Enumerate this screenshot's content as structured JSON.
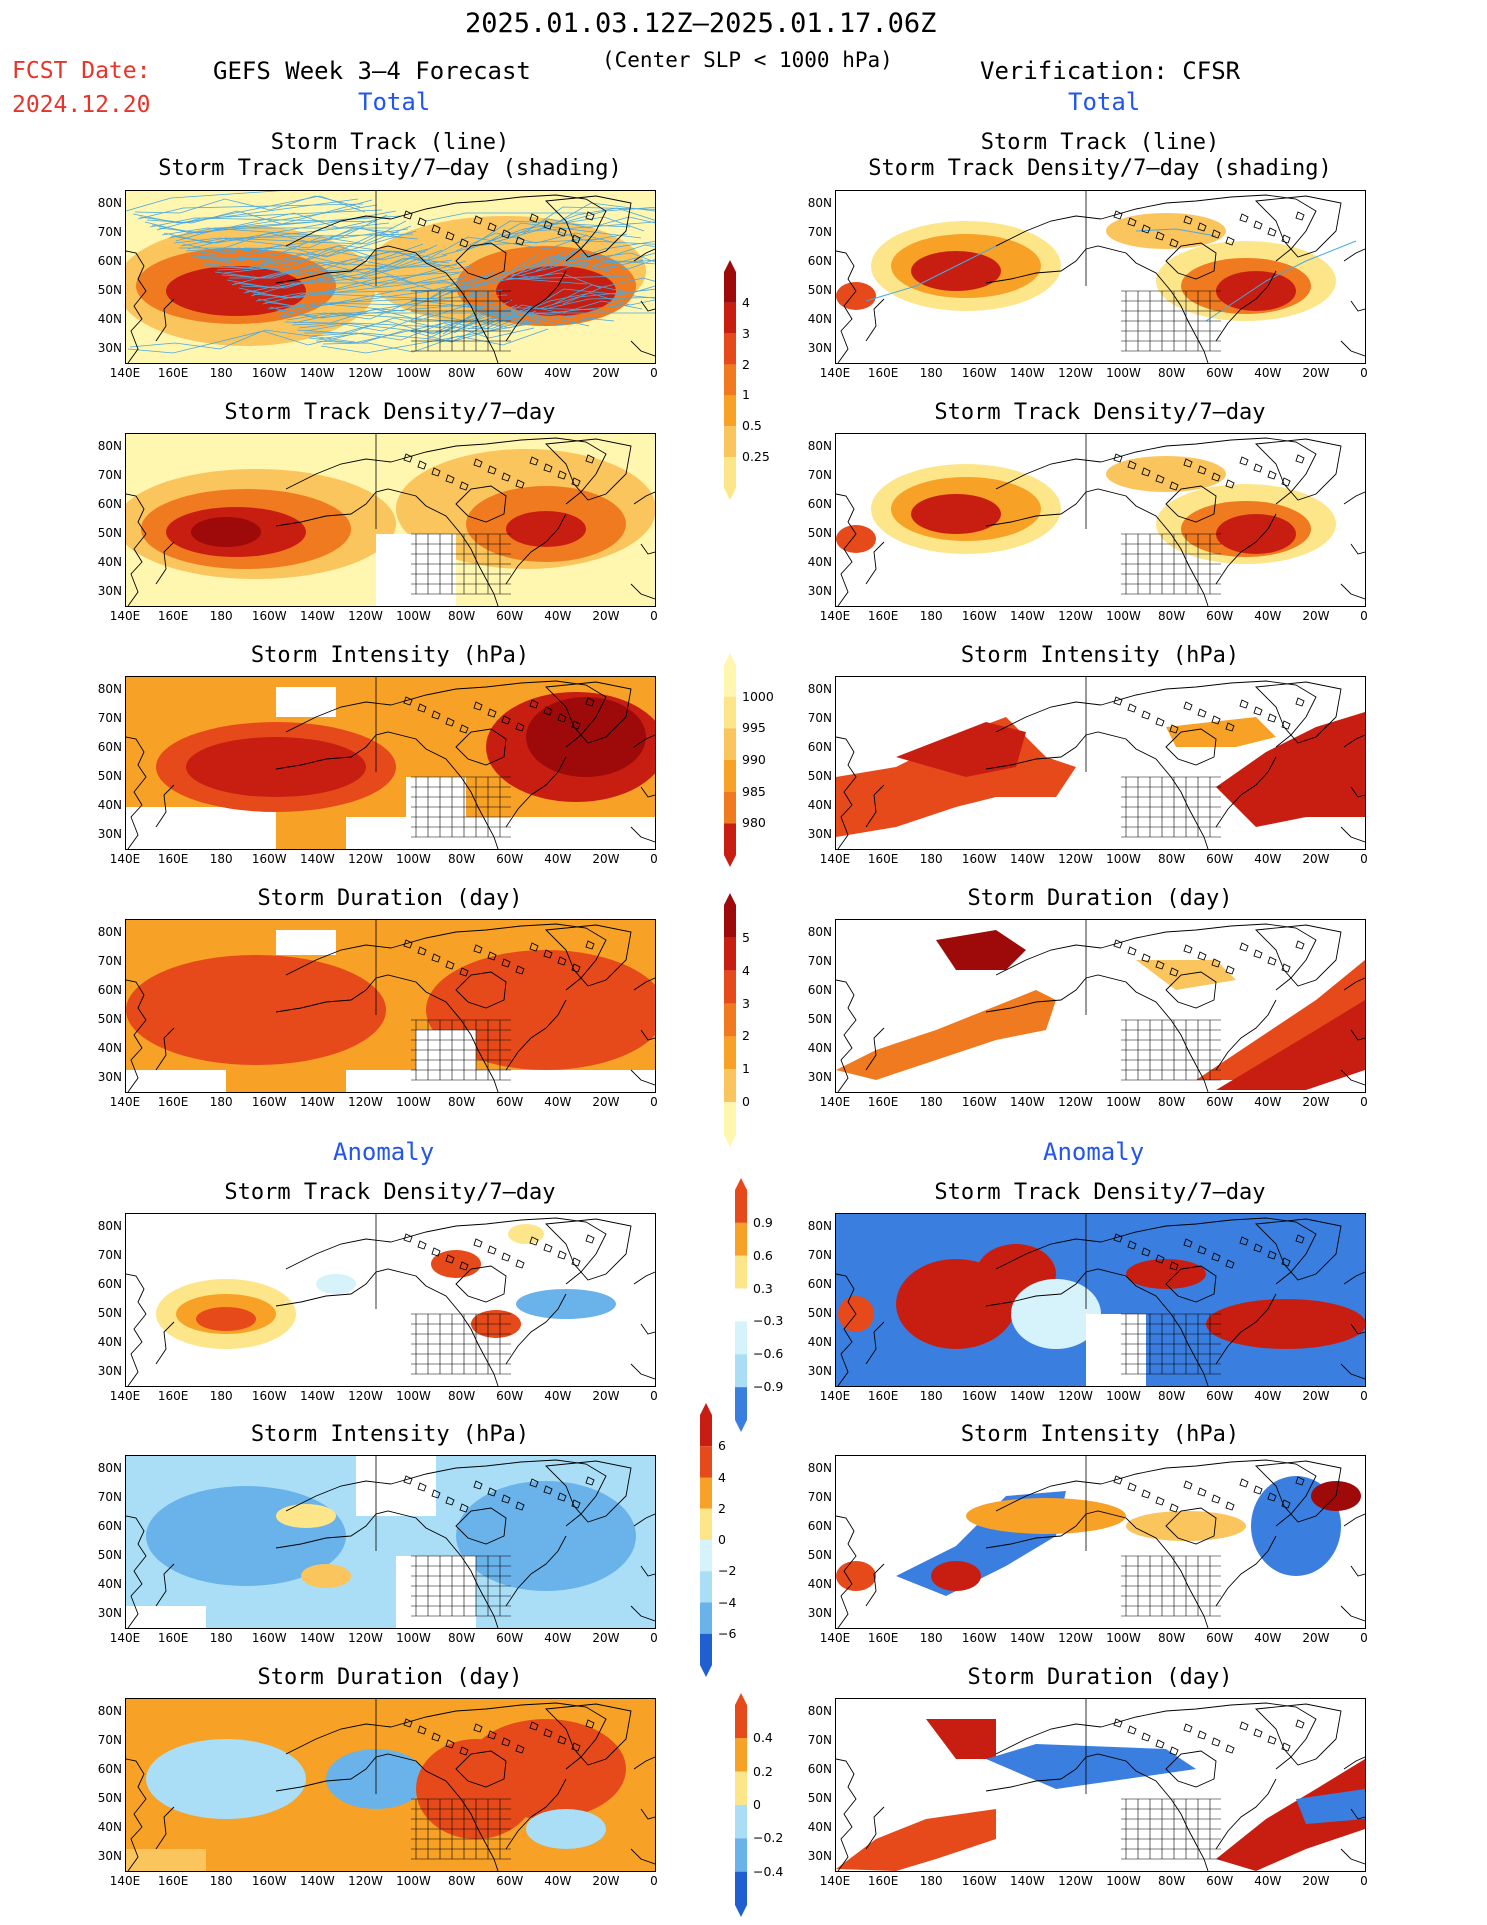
{
  "header": {
    "date_range": "2025.01.03.12Z–2025.01.17.06Z",
    "fcst_label": "FCST Date:",
    "fcst_date": "2024.12.20",
    "model_title": "GEFS Week 3–4 Forecast",
    "subtitle": "(Center SLP < 1000 hPa)",
    "verification": "Verification: CFSR",
    "total_left": "Total",
    "total_right": "Total",
    "anomaly_left": "Anomaly",
    "anomaly_right": "Anomaly"
  },
  "panel_titles": {
    "track_line": "Storm Track (line)",
    "track_shading": "Storm Track Density/7–day (shading)",
    "density": "Storm Track Density/7–day",
    "intensity": "Storm Intensity (hPa)",
    "duration": "Storm Duration (day)"
  },
  "axes": {
    "lat_labels": [
      "80N",
      "70N",
      "60N",
      "50N",
      "40N",
      "30N"
    ],
    "lon_labels": [
      "140E",
      "160E",
      "180",
      "160W",
      "140W",
      "120W",
      "100W",
      "80W",
      "60W",
      "40W",
      "20W",
      "0"
    ]
  },
  "colorbars": {
    "density_total": [
      "4",
      "3",
      "2",
      "1",
      "0.5",
      "0.25"
    ],
    "intensity_total": [
      "1000",
      "995",
      "990",
      "985",
      "980"
    ],
    "duration_total": [
      "5",
      "4",
      "3",
      "2",
      "1",
      "0"
    ],
    "density_anom": [
      "0.9",
      "0.6",
      "0.3",
      "−0.3",
      "−0.6",
      "−0.9"
    ],
    "intensity_anom": [
      "6",
      "4",
      "2",
      "0",
      "−2",
      "−4",
      "−6"
    ],
    "duration_anom": [
      "0.4",
      "0.2",
      "0",
      "−0.2",
      "−0.4"
    ]
  },
  "colors": {
    "warm": [
      "#fff6b0",
      "#fde68a",
      "#fbc55e",
      "#f7a127",
      "#f07a1f",
      "#e64a1a",
      "#c81e12",
      "#9e0a0a"
    ],
    "cool": [
      "#d6f2fb",
      "#a9def6",
      "#6ab2ea",
      "#3a7fdf",
      "#1f5fd1"
    ],
    "track": "#4aa8e0"
  }
}
